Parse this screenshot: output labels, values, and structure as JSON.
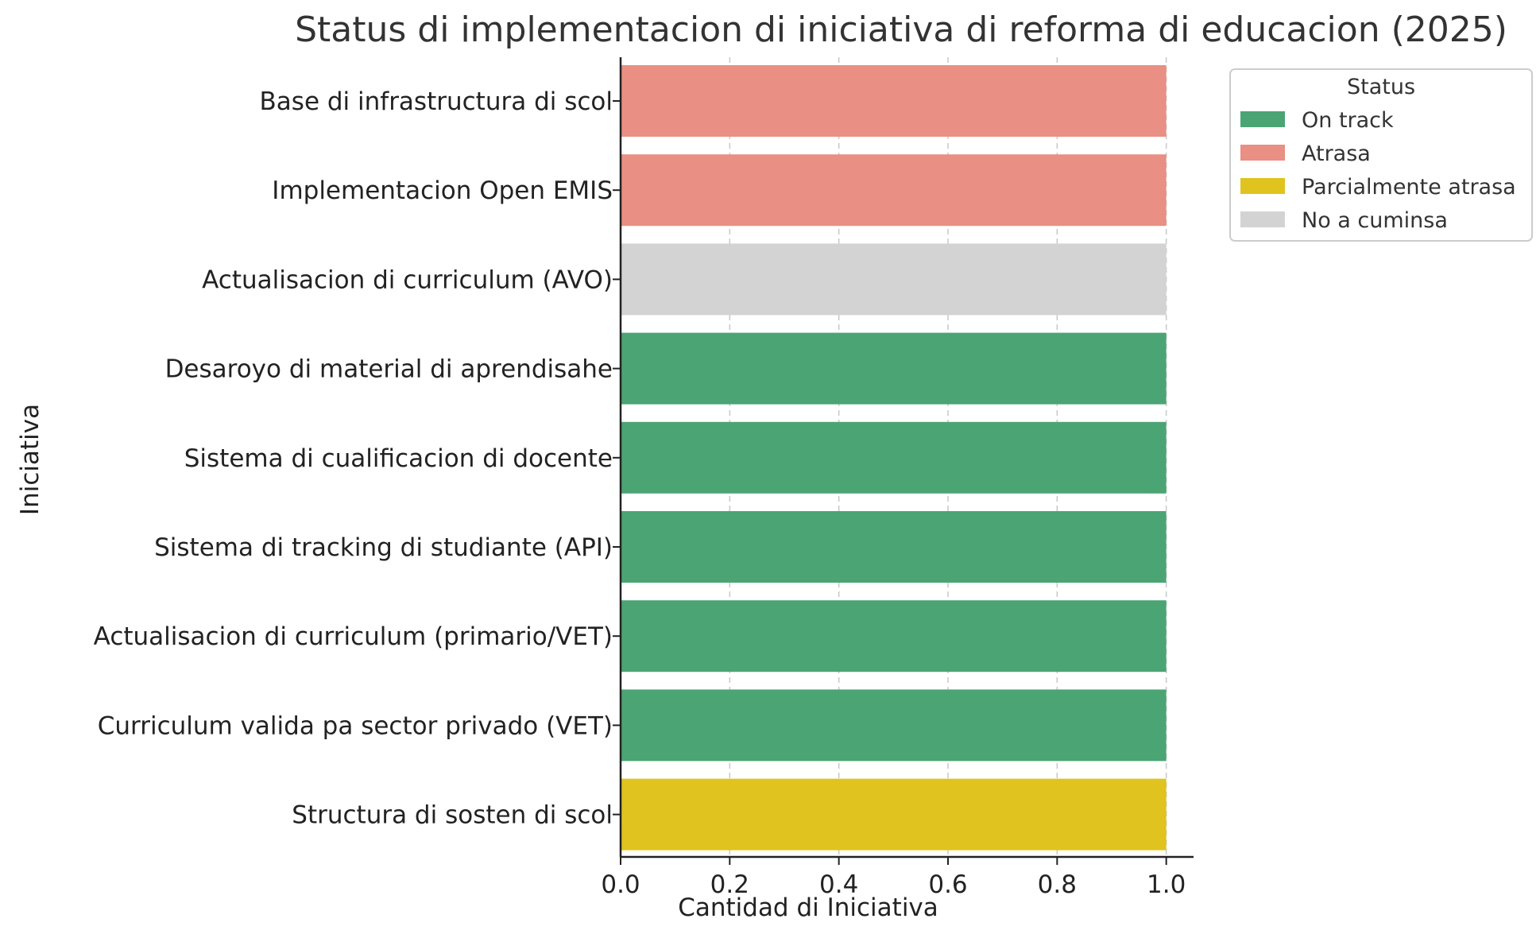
{
  "chart_data": {
    "type": "bar",
    "orientation": "horizontal",
    "title": "Status di implementacion di iniciativa di reforma di educacion (2025)",
    "xlabel": "Cantidad di Iniciativa",
    "ylabel": "Iniciativa",
    "xlim": [
      0.0,
      1.05
    ],
    "xticks": [
      "0.0",
      "0.2",
      "0.4",
      "0.6",
      "0.8",
      "1.0"
    ],
    "grid": "vertical dashed",
    "categories": [
      "Base di infrastructura di scol",
      "Implementacion Open EMIS",
      "Actualisacion di curriculum (AVO)",
      "Desaroyo di material di aprendisahe",
      "Sistema di cualificacion di docente",
      "Sistema di tracking di studiante (API)",
      "Actualisacion di curriculum (primario/VET)",
      "Curriculum valida pa sector privado (VET)",
      "Structura di sosten di scol"
    ],
    "values": [
      1,
      1,
      1,
      1,
      1,
      1,
      1,
      1,
      1
    ],
    "status": [
      "Atrasa",
      "Atrasa",
      "No a cuminsa",
      "On track",
      "On track",
      "On track",
      "On track",
      "On track",
      "Parcialmente atrasa"
    ],
    "legend": {
      "title": "Status",
      "placement": "outside-top-right",
      "entries": [
        {
          "label": "On track",
          "color": "#4ba474"
        },
        {
          "label": "Atrasa",
          "color": "#e98f83"
        },
        {
          "label": "Parcialmente atrasa",
          "color": "#e0c31f"
        },
        {
          "label": "No a cuminsa",
          "color": "#d3d3d3"
        }
      ]
    }
  }
}
